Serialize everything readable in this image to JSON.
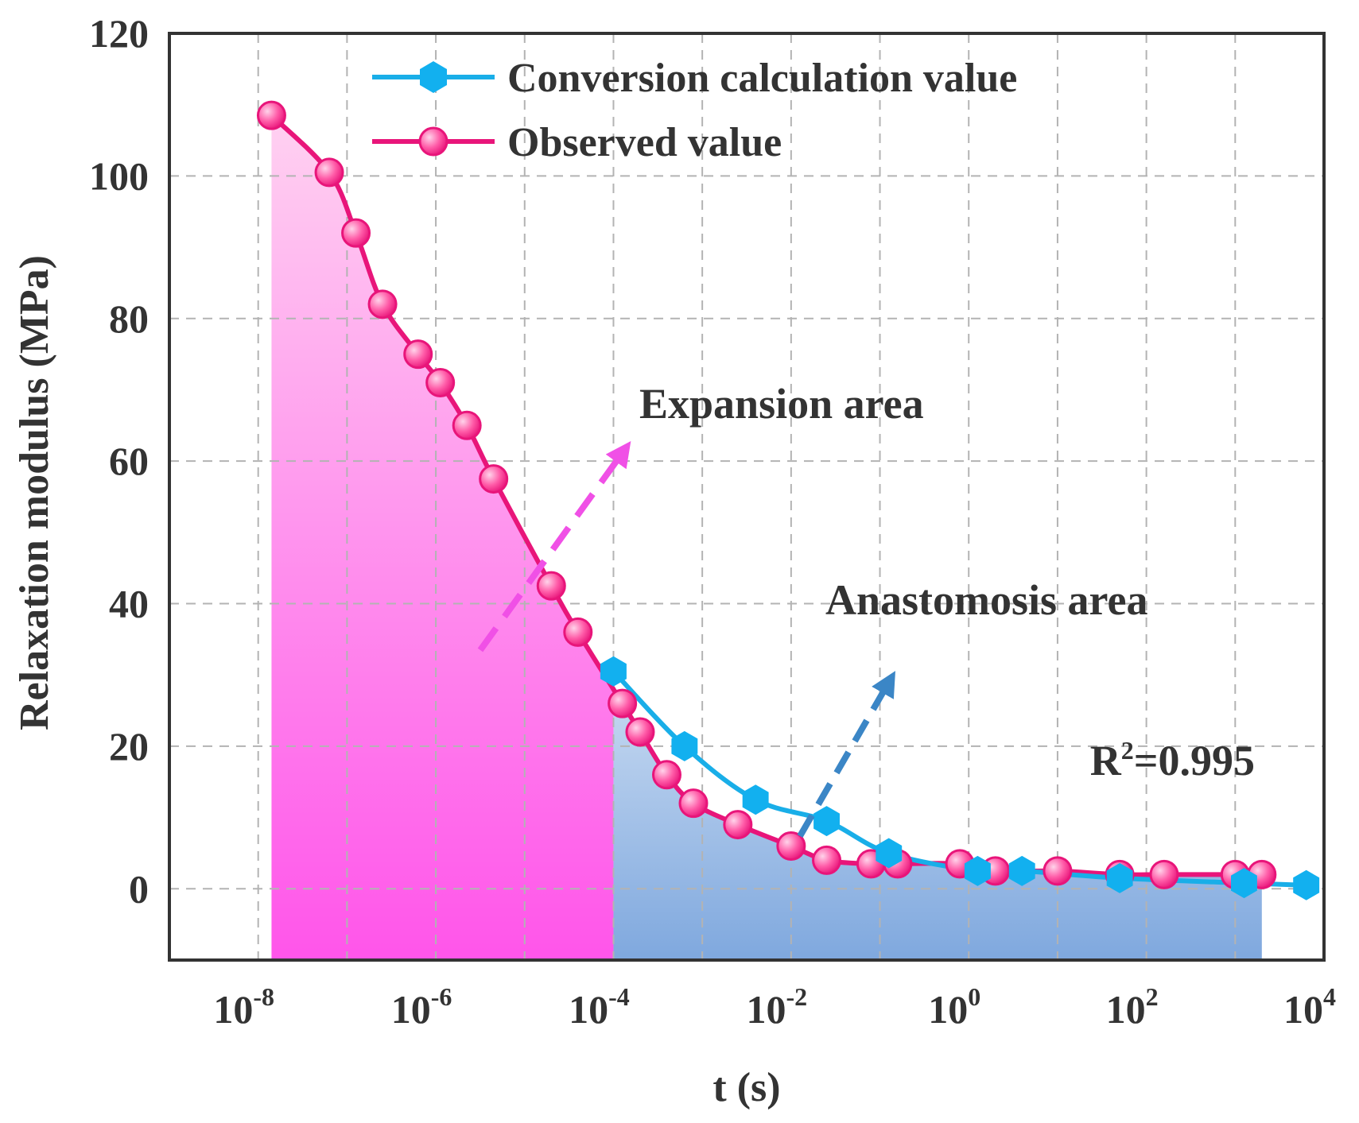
{
  "chart_data": {
    "type": "line",
    "title": "",
    "xlabel": "t (s)",
    "ylabel": "Relaxation modulus (MPa)",
    "xscale": "log",
    "xlim_log10": [
      -9,
      4
    ],
    "ylim": [
      -10,
      120
    ],
    "grid": true,
    "legend_position": "top",
    "x_ticks": [
      {
        "base": "10",
        "exp": "-8",
        "log10": -8
      },
      {
        "base": "10",
        "exp": "-6",
        "log10": -6
      },
      {
        "base": "10",
        "exp": "-4",
        "log10": -4
      },
      {
        "base": "10",
        "exp": "-2",
        "log10": -2
      },
      {
        "base": "10",
        "exp": "0",
        "log10": 0
      },
      {
        "base": "10",
        "exp": "2",
        "log10": 2
      },
      {
        "base": "10",
        "exp": "4",
        "log10": 4
      }
    ],
    "y_ticks": [
      0,
      20,
      40,
      60,
      80,
      100,
      120
    ],
    "series": [
      {
        "name": "Observed value",
        "color": "#e8157a",
        "marker_color": "#ff5ca8",
        "marker": "circle",
        "log10_x": [
          -7.85,
          -7.2,
          -6.9,
          -6.6,
          -6.2,
          -5.95,
          -5.65,
          -5.35,
          -4.7,
          -4.4,
          -3.9,
          -3.7,
          -3.4,
          -3.1,
          -2.6,
          -2.0,
          -1.6,
          -1.1,
          -0.8,
          -0.1,
          0.3,
          1.0,
          1.7,
          2.2,
          3.0,
          3.3
        ],
        "y": [
          108.5,
          100.5,
          92,
          82,
          75,
          71,
          65,
          57.5,
          42.5,
          36,
          26,
          22,
          16,
          12,
          9,
          6,
          4,
          3.5,
          3.5,
          3.5,
          2.5,
          2.5,
          2,
          2,
          2,
          2
        ]
      },
      {
        "name": "Conversion calculation value",
        "color": "#19aee8",
        "marker_color": "#12b0ef",
        "marker": "hexagon",
        "log10_x": [
          -4.0,
          -3.2,
          -2.4,
          -1.6,
          -0.9,
          0.1,
          0.6,
          1.7,
          3.1,
          3.8
        ],
        "y": [
          30.5,
          20,
          12.5,
          9.5,
          5,
          2.5,
          2.5,
          1.5,
          0.8,
          0.5
        ]
      }
    ],
    "regions": [
      {
        "name": "Expansion area",
        "log10_from": -8,
        "log10_to": -4,
        "color_top": "#ffd1f1",
        "color_bottom": "#ff55ea"
      },
      {
        "name": "Anastomosis area",
        "log10_from": -4,
        "log10_to": 3.3,
        "color_top": "#c6d9f1",
        "color_bottom": "#7fa8de"
      }
    ],
    "annotations": {
      "expansion": "Expansion area",
      "anastomosis": "Anastomosis area",
      "r2_base": "R",
      "r2_sup": "2",
      "r2_value": "=0.995"
    }
  }
}
